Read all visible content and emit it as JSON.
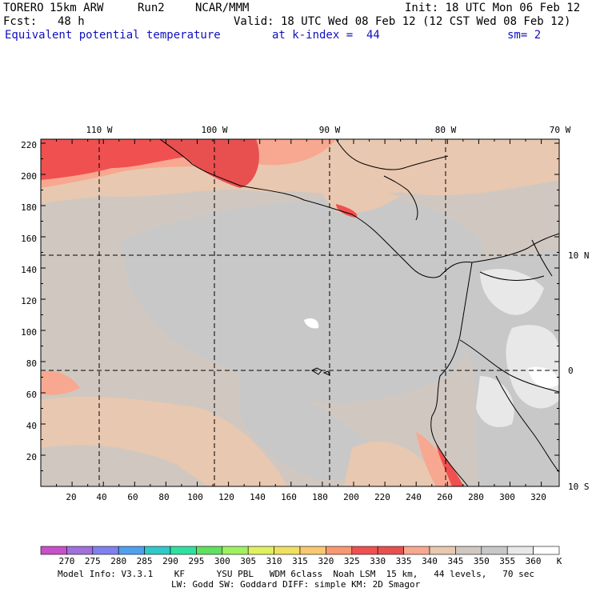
{
  "header": {
    "model": "TORERO",
    "resolution": "15km ARW",
    "run": "Run2",
    "org": "NCAR/MMM",
    "init": "Init: 18 UTC Mon 06 Feb 12",
    "fcst_label": "Fcst:",
    "fcst_value": "48 h",
    "valid": "Valid: 18 UTC Wed 08 Feb 12 (12 CST Wed 08 Feb 12)",
    "field": "Equivalent potential temperature",
    "level": "at k-index =  44",
    "smoothing": "sm= 2"
  },
  "map": {
    "top_labels": [
      "110 W",
      "100 W",
      "90 W",
      "80 W",
      "70 W"
    ],
    "right_labels": [
      "10 N",
      "0",
      "10 S"
    ],
    "y_ticks": [
      "220",
      "200",
      "180",
      "160",
      "140",
      "120",
      "100",
      "80",
      "60",
      "40",
      "20"
    ],
    "x_ticks": [
      "20",
      "40",
      "60",
      "80",
      "100",
      "120",
      "140",
      "160",
      "180",
      "200",
      "220",
      "240",
      "260",
      "280",
      "300",
      "320"
    ]
  },
  "colorbar": {
    "values": [
      "270",
      "275",
      "280",
      "285",
      "290",
      "295",
      "300",
      "305",
      "310",
      "315",
      "320",
      "325",
      "330",
      "335",
      "340",
      "345",
      "350",
      "355",
      "360"
    ],
    "unit": "K",
    "colors": [
      "#c850c8",
      "#a070dc",
      "#8080f0",
      "#50a0f0",
      "#30c8c8",
      "#30e0a0",
      "#60e060",
      "#a0f060",
      "#e0f060",
      "#f0e060",
      "#f8c870",
      "#f89870",
      "#f05050",
      "#e85050",
      "#f8a890",
      "#e8c8b0",
      "#d0c8c0",
      "#c8c8c8",
      "#e8e8e8",
      "#ffffff"
    ]
  },
  "footer": {
    "line1": "Model Info: V3.3.1    KF      YSU PBL   WDM 6class  Noah LSM  15 km,   44 levels,   70 sec",
    "line2": "LW: Godd SW: Goddard DIFF: simple KM: 2D Smagor"
  }
}
